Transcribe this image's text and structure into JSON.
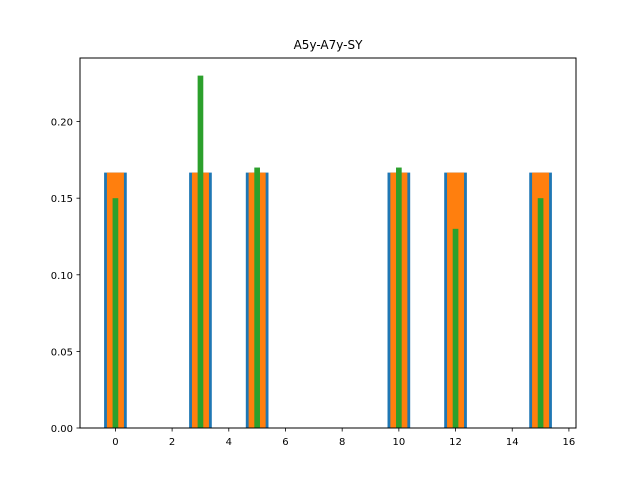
{
  "chart_data": {
    "type": "bar",
    "title": "A5y-A7y-SY",
    "xlabel": "",
    "ylabel": "",
    "xlim": [
      -1.25,
      16.25
    ],
    "ylim": [
      0,
      0.2415
    ],
    "xticks": [
      0,
      2,
      4,
      6,
      8,
      10,
      12,
      14,
      16
    ],
    "yticks": [
      0.0,
      0.05,
      0.1,
      0.15,
      0.2
    ],
    "ytick_labels": [
      "0.00",
      "0.05",
      "0.10",
      "0.15",
      "0.20"
    ],
    "grid": false,
    "legend": "none",
    "x": [
      0,
      3,
      5,
      10,
      12,
      15
    ],
    "series": [
      {
        "color": "#1f77b4",
        "bar_width": 0.8,
        "values": [
          0.1667,
          0.1667,
          0.1667,
          0.1667,
          0.1667,
          0.1667
        ]
      },
      {
        "color": "#ff7f0e",
        "bar_width": 0.6,
        "values": [
          0.1667,
          0.1667,
          0.1667,
          0.1667,
          0.1667,
          0.1667
        ]
      },
      {
        "color": "#2ca02c",
        "bar_width": 0.2,
        "values": [
          0.15,
          0.23,
          0.17,
          0.17,
          0.13,
          0.15
        ]
      }
    ]
  }
}
